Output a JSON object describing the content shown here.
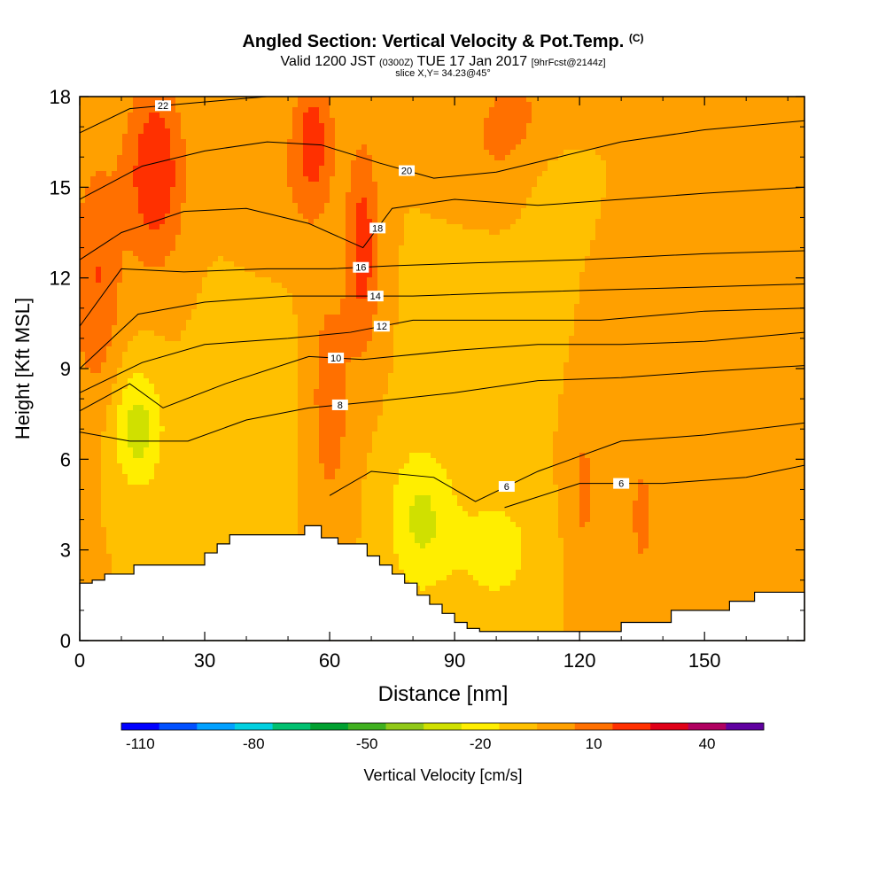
{
  "title": {
    "main": "Angled Section: Vertical Velocity & Pot.Temp.",
    "main_units": "(C)",
    "valid_prefix": "Valid 1200 JST",
    "valid_utc": "(0300Z)",
    "valid_date": "TUE 17 Jan 2017",
    "forecast": "[9hrFcst@2144z]",
    "slice": "slice X,Y= 34.23@45°"
  },
  "chart_data": {
    "type": "heatmap",
    "xlabel": "Distance [nm]",
    "ylabel": "Height [Kft MSL]",
    "xlim": [
      0,
      174
    ],
    "ylim": [
      0,
      18
    ],
    "x_ticks": [
      0,
      30,
      60,
      90,
      120,
      150
    ],
    "y_ticks": [
      0,
      3,
      6,
      9,
      12,
      15,
      18
    ],
    "colorbar": {
      "label": "Vertical Velocity [cm/s]",
      "min": -110,
      "step": 10,
      "tick_values": [
        -110,
        -80,
        -50,
        -20,
        10,
        40
      ],
      "colors": [
        "#0000ff",
        "#0050ff",
        "#00a0ff",
        "#00d0e0",
        "#00c070",
        "#00a030",
        "#40b020",
        "#90c818",
        "#d0e000",
        "#ffee00",
        "#ffc000",
        "#ffa000",
        "#ff7000",
        "#ff3000",
        "#e00018",
        "#b00060",
        "#6000a0"
      ]
    },
    "terrain_profile": {
      "x": [
        0,
        3,
        6,
        13,
        30,
        33,
        36,
        42,
        54,
        58,
        62,
        66,
        69,
        72,
        75,
        78,
        81,
        84,
        87,
        90,
        93,
        96,
        102,
        126,
        130,
        142,
        150,
        156,
        162,
        174
      ],
      "height": [
        1.9,
        2.0,
        2.2,
        2.5,
        2.9,
        3.2,
        3.5,
        3.5,
        3.8,
        3.4,
        3.2,
        3.2,
        2.8,
        2.5,
        2.2,
        1.9,
        1.5,
        1.2,
        0.9,
        0.6,
        0.4,
        0.3,
        0.3,
        0.3,
        0.6,
        1.0,
        1.0,
        1.3,
        1.6,
        1.6
      ]
    },
    "velocity_field": {
      "background": 0,
      "features": [
        {
          "x": 18,
          "y": 15.5,
          "sx": 7,
          "sy": 3.0,
          "value": 30
        },
        {
          "x": 4,
          "y": 12.0,
          "sx": 6,
          "sy": 4.0,
          "value": 20
        },
        {
          "x": 56,
          "y": 16.5,
          "sx": 5,
          "sy": 2.5,
          "value": 25
        },
        {
          "x": 68,
          "y": 13.0,
          "sx": 4,
          "sy": 3.5,
          "value": 25
        },
        {
          "x": 60,
          "y": 8.0,
          "sx": 5,
          "sy": 4.0,
          "value": 16
        },
        {
          "x": 105,
          "y": 16.5,
          "sx": 12,
          "sy": 2.5,
          "value": 18
        },
        {
          "x": 140,
          "y": 10.5,
          "sx": 10,
          "sy": 3.5,
          "value": 10
        },
        {
          "x": 121,
          "y": 5.0,
          "sx": 4,
          "sy": 3.0,
          "value": 12
        },
        {
          "x": 135,
          "y": 4.0,
          "sx": 3,
          "sy": 2.0,
          "value": 14
        },
        {
          "x": 45,
          "y": 15.0,
          "sx": 8,
          "sy": 2.0,
          "value": 8
        },
        {
          "x": 14,
          "y": 7.0,
          "sx": 6,
          "sy": 2.0,
          "value": -25
        },
        {
          "x": 82,
          "y": 4.0,
          "sx": 8,
          "sy": 2.5,
          "value": -22
        },
        {
          "x": 100,
          "y": 3.0,
          "sx": 10,
          "sy": 2.0,
          "value": -15
        },
        {
          "x": 110,
          "y": 15.5,
          "sx": 10,
          "sy": 2.0,
          "value": -12
        },
        {
          "x": 40,
          "y": 7.5,
          "sx": 10,
          "sy": 3.0,
          "value": -10
        },
        {
          "x": 98,
          "y": 10.0,
          "sx": 12,
          "sy": 3.0,
          "value": -8
        }
      ]
    },
    "theta_contours": [
      {
        "label": "6",
        "points": [
          [
            102,
            4.4
          ],
          [
            120,
            5.2
          ],
          [
            140,
            5.2
          ],
          [
            160,
            5.4
          ],
          [
            174,
            5.8
          ]
        ]
      },
      {
        "label": "6",
        "points": [
          [
            60,
            4.8
          ],
          [
            70,
            5.6
          ],
          [
            85,
            5.4
          ],
          [
            95,
            4.6
          ],
          [
            110,
            5.6
          ],
          [
            130,
            6.6
          ],
          [
            150,
            6.8
          ],
          [
            174,
            7.2
          ]
        ]
      },
      {
        "label": "8",
        "points": [
          [
            0,
            6.9
          ],
          [
            12,
            6.6
          ],
          [
            26,
            6.6
          ],
          [
            40,
            7.3
          ],
          [
            55,
            7.7
          ],
          [
            70,
            7.9
          ],
          [
            90,
            8.2
          ],
          [
            110,
            8.6
          ],
          [
            130,
            8.7
          ],
          [
            150,
            8.9
          ],
          [
            174,
            9.1
          ]
        ]
      },
      {
        "label": "10",
        "points": [
          [
            0,
            7.6
          ],
          [
            12,
            8.5
          ],
          [
            20,
            7.7
          ],
          [
            35,
            8.5
          ],
          [
            55,
            9.4
          ],
          [
            68,
            9.3
          ],
          [
            90,
            9.6
          ],
          [
            110,
            9.8
          ],
          [
            130,
            9.8
          ],
          [
            150,
            9.9
          ],
          [
            174,
            10.2
          ]
        ]
      },
      {
        "label": "12",
        "points": [
          [
            0,
            8.2
          ],
          [
            15,
            9.2
          ],
          [
            30,
            9.8
          ],
          [
            50,
            10.0
          ],
          [
            65,
            10.2
          ],
          [
            80,
            10.6
          ],
          [
            100,
            10.6
          ],
          [
            125,
            10.6
          ],
          [
            150,
            10.9
          ],
          [
            174,
            11.0
          ]
        ]
      },
      {
        "label": "14",
        "points": [
          [
            0,
            9.0
          ],
          [
            14,
            10.8
          ],
          [
            30,
            11.2
          ],
          [
            50,
            11.4
          ],
          [
            62,
            11.4
          ],
          [
            80,
            11.4
          ],
          [
            100,
            11.5
          ],
          [
            125,
            11.6
          ],
          [
            150,
            11.7
          ],
          [
            174,
            11.8
          ]
        ]
      },
      {
        "label": "16",
        "points": [
          [
            0,
            10.4
          ],
          [
            10,
            12.3
          ],
          [
            25,
            12.2
          ],
          [
            45,
            12.3
          ],
          [
            60,
            12.3
          ],
          [
            75,
            12.4
          ],
          [
            95,
            12.5
          ],
          [
            120,
            12.6
          ],
          [
            150,
            12.8
          ],
          [
            174,
            12.9
          ]
        ]
      },
      {
        "label": "18",
        "points": [
          [
            0,
            12.6
          ],
          [
            10,
            13.5
          ],
          [
            25,
            14.2
          ],
          [
            40,
            14.3
          ],
          [
            55,
            13.8
          ],
          [
            68,
            13.0
          ],
          [
            75,
            14.3
          ],
          [
            90,
            14.6
          ],
          [
            110,
            14.4
          ],
          [
            130,
            14.6
          ],
          [
            150,
            14.8
          ],
          [
            174,
            15.0
          ]
        ]
      },
      {
        "label": "20",
        "points": [
          [
            0,
            14.6
          ],
          [
            15,
            15.7
          ],
          [
            30,
            16.2
          ],
          [
            45,
            16.5
          ],
          [
            58,
            16.4
          ],
          [
            72,
            15.8
          ],
          [
            85,
            15.3
          ],
          [
            100,
            15.5
          ],
          [
            115,
            16.0
          ],
          [
            130,
            16.5
          ],
          [
            150,
            16.9
          ],
          [
            174,
            17.2
          ]
        ]
      },
      {
        "label": "22",
        "points": [
          [
            0,
            16.8
          ],
          [
            12,
            17.6
          ],
          [
            28,
            17.8
          ],
          [
            45,
            18.0
          ]
        ]
      }
    ]
  }
}
